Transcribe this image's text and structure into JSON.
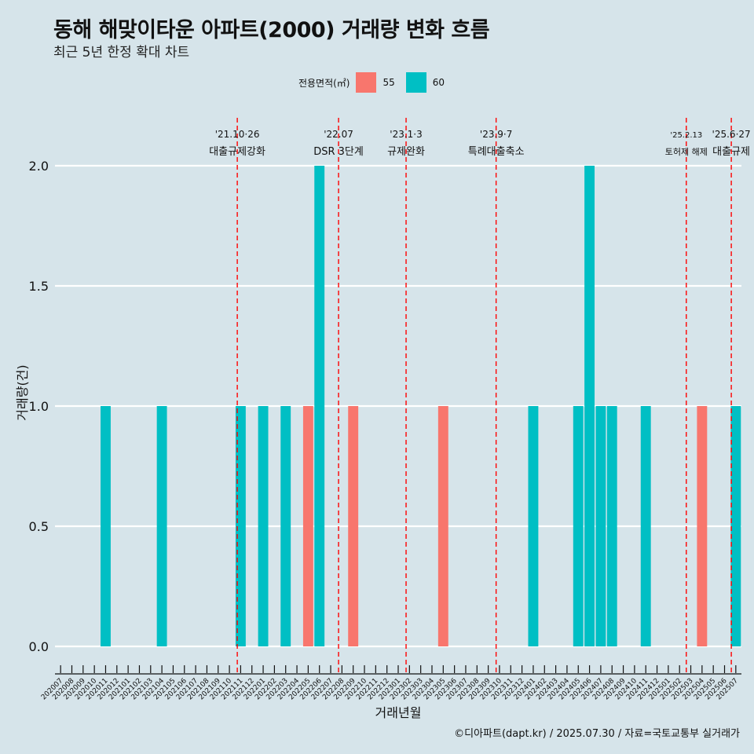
{
  "title": "동해 해맞이타운 아파트(2000) 거래량 변화 흐름",
  "subtitle": "최근 5년 한정 확대 차트",
  "legend": {
    "title": "전용면적(㎡)",
    "items": [
      {
        "label": "55",
        "color": "#f8766d"
      },
      {
        "label": "60",
        "color": "#00bfc4"
      }
    ]
  },
  "caption": "©디아파트(dapt.kr) / 2025.07.30 / 자료=국토교통부 실거래가",
  "chart_data": {
    "type": "bar",
    "xlabel": "거래년월",
    "ylabel": "거래량(건)",
    "ylim": [
      0,
      2
    ],
    "yticks": [
      "0.0",
      "0.5",
      "1.0",
      "1.5",
      "2.0"
    ],
    "categories": [
      "202007",
      "202008",
      "202009",
      "202010",
      "202011",
      "202012",
      "202101",
      "202102",
      "202103",
      "202104",
      "202105",
      "202106",
      "202107",
      "202108",
      "202109",
      "202110",
      "202111",
      "202112",
      "202201",
      "202202",
      "202203",
      "202204",
      "202205",
      "202206",
      "202207",
      "202208",
      "202209",
      "202210",
      "202211",
      "202212",
      "202301",
      "202302",
      "202303",
      "202304",
      "202305",
      "202306",
      "202307",
      "202308",
      "202309",
      "202310",
      "202311",
      "202312",
      "202401",
      "202402",
      "202403",
      "202404",
      "202405",
      "202406",
      "202407",
      "202408",
      "202409",
      "202410",
      "202411",
      "202412",
      "202501",
      "202502",
      "202503",
      "202504",
      "202505",
      "202506",
      "202507"
    ],
    "series": [
      {
        "name": "55",
        "color": "#f8766d",
        "bars": [
          {
            "month": "202205",
            "value": 1
          },
          {
            "month": "202209",
            "value": 1
          },
          {
            "month": "202305",
            "value": 1
          },
          {
            "month": "202504",
            "value": 1
          }
        ]
      },
      {
        "name": "60",
        "color": "#00bfc4",
        "bars": [
          {
            "month": "202011",
            "value": 1
          },
          {
            "month": "202104",
            "value": 1
          },
          {
            "month": "202111",
            "value": 1
          },
          {
            "month": "202201",
            "value": 1
          },
          {
            "month": "202203",
            "value": 1
          },
          {
            "month": "202206",
            "value": 2
          },
          {
            "month": "202401",
            "value": 1
          },
          {
            "month": "202405",
            "value": 1
          },
          {
            "month": "202406",
            "value": 2
          },
          {
            "month": "202407",
            "value": 1
          },
          {
            "month": "202408",
            "value": 1
          },
          {
            "month": "202411",
            "value": 1
          },
          {
            "month": "202507",
            "value": 1
          }
        ]
      }
    ],
    "annotations": [
      {
        "at": 15.7,
        "line1": "'21.10·26",
        "line2": "대출규제강화",
        "small": false
      },
      {
        "at": 24.7,
        "line1": "'22.07",
        "line2": "DSR 3단계",
        "small": false
      },
      {
        "at": 30.7,
        "line1": "'23.1·3",
        "line2": "규제완화",
        "small": false
      },
      {
        "at": 38.7,
        "line1": "'23.9·7",
        "line2": "특례대출축소",
        "small": false
      },
      {
        "at": 55.6,
        "line1": "'25.2.13",
        "line2": "토허제 해제",
        "small": true
      },
      {
        "at": 59.6,
        "line1": "'25.6·27",
        "line2": "대출규제",
        "small": false
      }
    ]
  }
}
